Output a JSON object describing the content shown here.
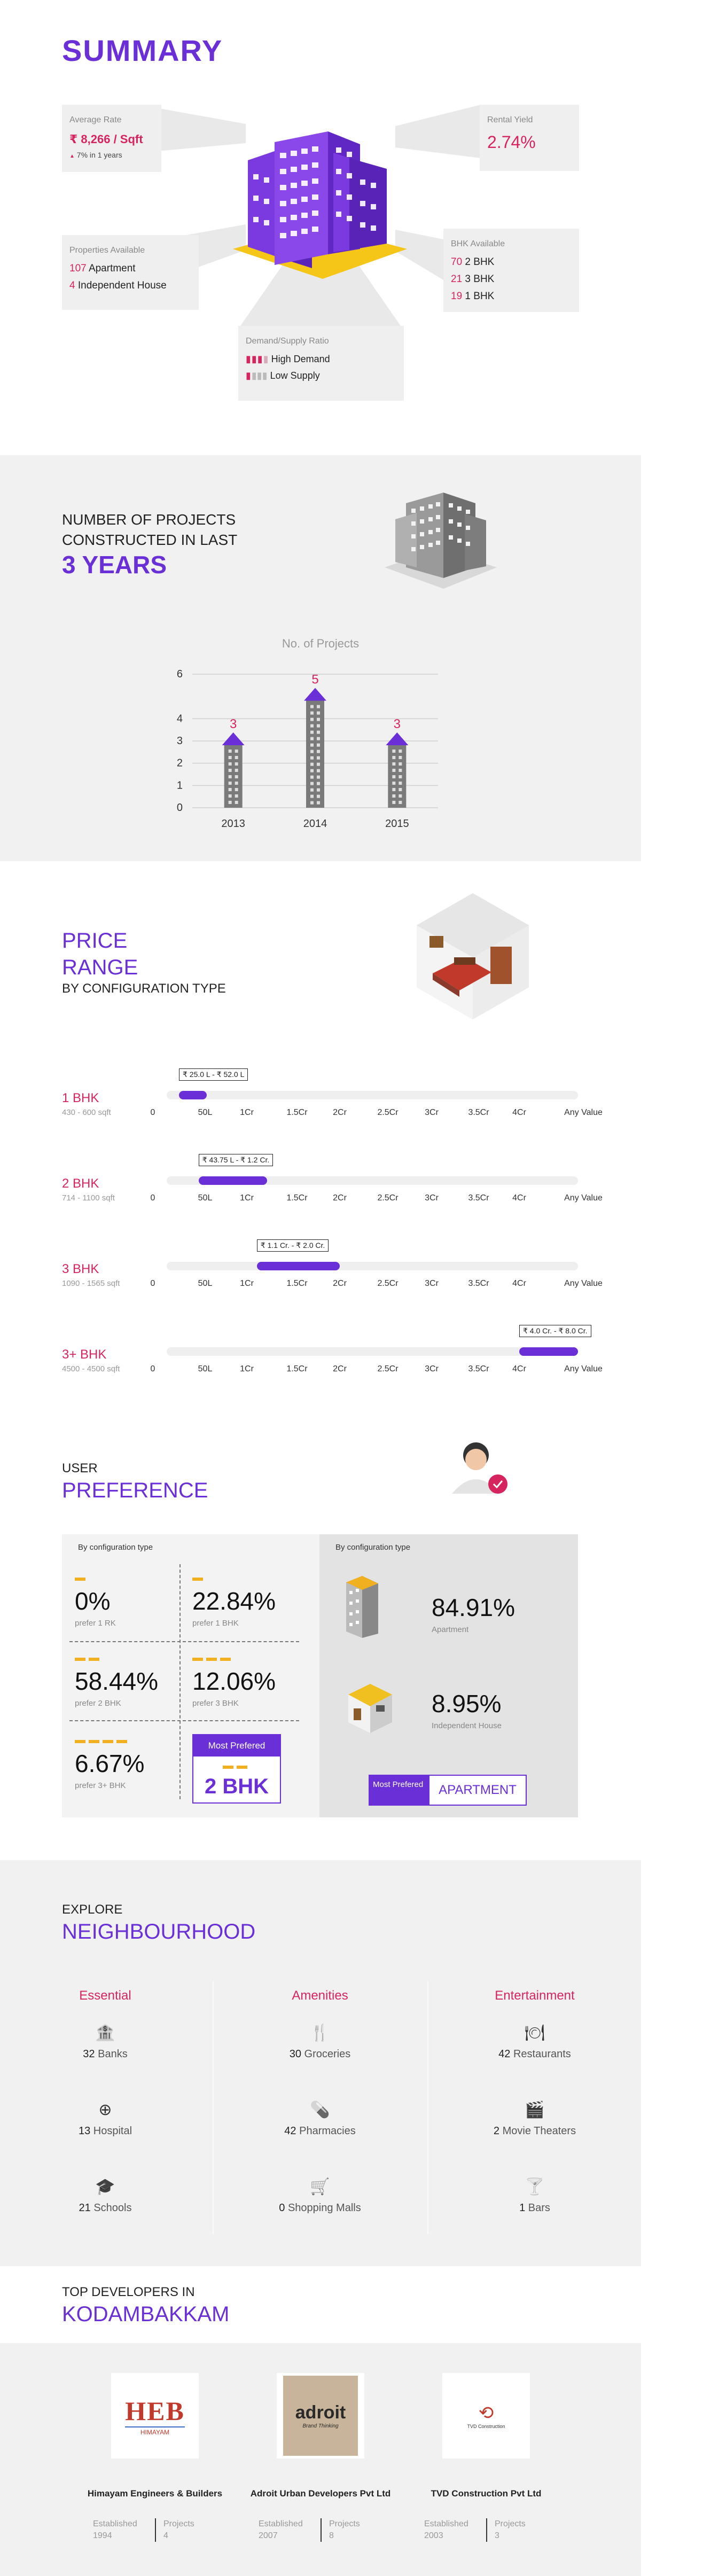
{
  "summary": {
    "title": "SUMMARY",
    "average_rate": {
      "label": "Average Rate",
      "value": "₹ 8,266 / Sqft",
      "change": "7% in 1 years"
    },
    "rental_yield": {
      "label": "Rental Yield",
      "value": "2.74%"
    },
    "properties": {
      "label": "Properties Available",
      "items": [
        {
          "count": "107",
          "type": "Apartment"
        },
        {
          "count": "4",
          "type": "Independent House"
        }
      ]
    },
    "bhk": {
      "label": "BHK Available",
      "items": [
        {
          "count": "70",
          "type": "2 BHK"
        },
        {
          "count": "21",
          "type": "3 BHK"
        },
        {
          "count": "19",
          "type": "1 BHK"
        }
      ]
    },
    "demand": {
      "label": "Demand/Supply Ratio",
      "high": "High Demand",
      "low": "Low Supply"
    },
    "colors": {
      "accent": "#6a2fd6",
      "highlight": "#d6245f"
    }
  },
  "projects": {
    "line1": "NUMBER OF PROJECTS",
    "line2": "CONSTRUCTED IN LAST",
    "years": "3 YEARS",
    "chart_data": {
      "type": "bar",
      "title": "No. of Projects",
      "categories": [
        "2013",
        "2014",
        "2015"
      ],
      "values": [
        3,
        5,
        3
      ],
      "yticks": [
        "0",
        "1",
        "2",
        "3",
        "4",
        "6"
      ],
      "ylim": [
        0,
        6
      ],
      "grid": true
    }
  },
  "price": {
    "title1": "PRICE",
    "title2": "RANGE",
    "subtitle": "BY CONFIGURATION TYPE",
    "ticks": [
      "0",
      "50L",
      "1Cr",
      "1.5Cr",
      "2Cr",
      "2.5Cr",
      "3Cr",
      "3.5Cr",
      "4Cr",
      "Any Value"
    ],
    "rows": [
      {
        "label": "1 BHK",
        "area": "430 - 600 sqft",
        "range": "₹ 25.0 L - ₹ 52.0 L",
        "from": 0.25,
        "to": 0.52
      },
      {
        "label": "2 BHK",
        "area": "714 - 1100 sqft",
        "range": "₹ 43.75 L - ₹ 1.2 Cr.",
        "from": 0.4375,
        "to": 1.2
      },
      {
        "label": "3 BHK",
        "area": "1090 - 1565 sqft",
        "range": "₹ 1.1 Cr. - ₹ 2.0 Cr.",
        "from": 1.1,
        "to": 2.0
      },
      {
        "label": "3+ BHK",
        "area": "4500 - 4500 sqft",
        "range": "₹ 4.0 Cr. - ₹ 8.0 Cr.",
        "from": 4.0,
        "to": 8.0
      }
    ]
  },
  "preference": {
    "title_small": "USER",
    "title_big": "PREFERENCE",
    "left_label": "By configuration type",
    "right_label": "By configuration type",
    "cells": [
      {
        "pct": "0%",
        "prefer": "prefer 1 RK"
      },
      {
        "pct": "22.84%",
        "prefer": "prefer 1 BHK"
      },
      {
        "pct": "58.44%",
        "prefer": "prefer 2 BHK"
      },
      {
        "pct": "12.06%",
        "prefer": "prefer 3 BHK"
      },
      {
        "pct": "6.67%",
        "prefer": "prefer 3+ BHK"
      }
    ],
    "most_preferred_label": "Most Prefered",
    "most_preferred_value": "2 BHK",
    "types": [
      {
        "pct": "84.91%",
        "type": "Apartment"
      },
      {
        "pct": "8.95%",
        "type": "Independent House"
      }
    ],
    "type_badge_label": "Most Prefered",
    "type_badge_value": "APARTMENT"
  },
  "neighbourhood": {
    "title_small": "EXPLORE",
    "title_big": "NEIGHBOURHOOD",
    "columns": [
      {
        "heading": "Essential",
        "items": [
          {
            "count": "32",
            "name": "Banks",
            "icon": "bank-icon",
            "glyph": "🏦"
          },
          {
            "count": "13",
            "name": "Hospital",
            "icon": "hospital-icon",
            "glyph": "⊕"
          },
          {
            "count": "21",
            "name": "Schools",
            "icon": "school-icon",
            "glyph": "🎓"
          }
        ]
      },
      {
        "heading": "Amenities",
        "items": [
          {
            "count": "30",
            "name": "Groceries",
            "icon": "groceries-icon",
            "glyph": "🍴"
          },
          {
            "count": "42",
            "name": "Pharmacies",
            "icon": "pill-icon",
            "glyph": "💊"
          },
          {
            "count": "0",
            "name": "Shopping Malls",
            "icon": "cart-icon",
            "glyph": "🛒"
          }
        ]
      },
      {
        "heading": "Entertainment",
        "items": [
          {
            "count": "42",
            "name": "Restaurants",
            "icon": "restaurant-icon",
            "glyph": "🍽"
          },
          {
            "count": "2",
            "name": "Movie Theaters",
            "icon": "movie-icon",
            "glyph": "🎬"
          },
          {
            "count": "1",
            "name": "Bars",
            "icon": "cocktail-icon",
            "glyph": "🍸"
          }
        ]
      }
    ]
  },
  "developers": {
    "title_small": "TOP DEVELOPERS IN",
    "title_big": "KODAMBAKKAM",
    "established_label": "Established",
    "projects_label": "Projects",
    "list": [
      {
        "name": "Himayam Engineers & Builders",
        "established": "1994",
        "projects": "4",
        "logo_text": "HEB",
        "logo_sub": "HIMAYAM"
      },
      {
        "name": "Adroit Urban Developers Pvt Ltd",
        "established": "2007",
        "projects": "8",
        "logo_text": "adroit",
        "logo_sub": "Brand Thinking"
      },
      {
        "name": "TVD Construction Pvt Ltd",
        "established": "2003",
        "projects": "3",
        "logo_text": "TVD Construction",
        "logo_sub": ""
      }
    ]
  }
}
